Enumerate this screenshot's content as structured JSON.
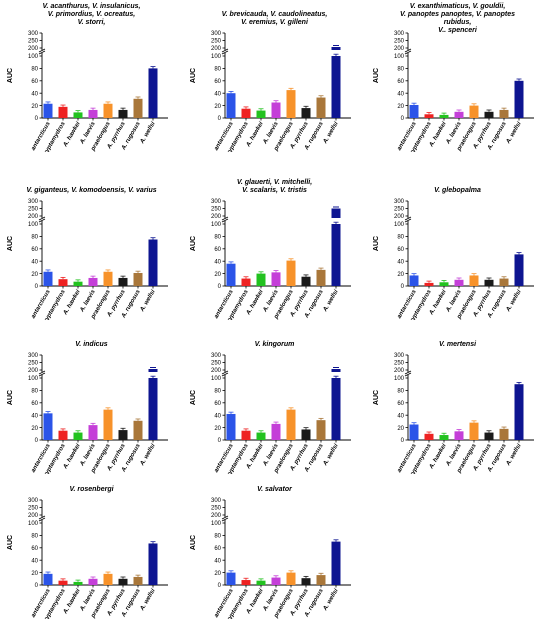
{
  "y_axis_label": "AUC",
  "y_ticks_lower": [
    "0",
    "20",
    "40",
    "60",
    "80",
    "100"
  ],
  "y_ticks_upper": [
    "200",
    "250",
    "300"
  ],
  "species": [
    "A. antarcticus",
    "A. cryptamydros",
    "A. hawkei",
    "A. laevis",
    "A. praelongus",
    "A. pyrrhus",
    "A. rugosus",
    "A. wellsi"
  ],
  "colors": {
    "A. antarcticus": "#2b54e8",
    "A. cryptamydros": "#ee2222",
    "A. hawkei": "#22c21f",
    "A. laevis": "#c43fd8",
    "A. praelongus": "#f7922a",
    "A. pyrrhus": "#1a1a1a",
    "A. rugosus": "#a9773a",
    "A. wellsi": "#0e1591"
  },
  "chart_data": [
    {
      "type": "bar",
      "title_lines": [
        "V. acanthurus, V. insulanicus,",
        "V. primordius, V. ocreatus,",
        "V. storri,"
      ],
      "values": [
        23,
        18,
        9,
        13,
        23,
        13,
        31,
        80
      ]
    },
    {
      "type": "bar",
      "title_lines": [
        "V. brevicauda, V. caudolineatus,",
        "V. eremius, V. gilleni"
      ],
      "values": [
        40,
        15,
        12,
        25,
        45,
        16,
        33,
        130
      ]
    },
    {
      "type": "bar",
      "title_lines": [
        "V. exanthimaticus, V. gouldii,",
        "V. panoptes panoptes, V. panoptes rubidus,",
        "V.. spenceri"
      ],
      "values": [
        21,
        6,
        5,
        10,
        20,
        10,
        13,
        60
      ]
    },
    {
      "type": "bar",
      "title_lines": [
        "V. giganteus, V. komodoensis, V. varius"
      ],
      "values": [
        23,
        11,
        7,
        13,
        23,
        13,
        21,
        75
      ]
    },
    {
      "type": "bar",
      "title_lines": [
        "V. glauerti, V. mitchelli,",
        "V. scalaris, V. tristis"
      ],
      "values": [
        36,
        12,
        20,
        22,
        41,
        15,
        26,
        250
      ]
    },
    {
      "type": "bar",
      "title_lines": [
        "V. glebopalma"
      ],
      "values": [
        17,
        5,
        6,
        10,
        17,
        10,
        12,
        51
      ]
    },
    {
      "type": "bar",
      "title_lines": [
        "V. indicus"
      ],
      "values": [
        43,
        15,
        12,
        24,
        49,
        16,
        31,
        140
      ]
    },
    {
      "type": "bar",
      "title_lines": [
        "V. kingorum"
      ],
      "values": [
        42,
        15,
        12,
        26,
        49,
        17,
        32,
        130
      ]
    },
    {
      "type": "bar",
      "title_lines": [
        "V. mertensi"
      ],
      "values": [
        25,
        10,
        8,
        14,
        28,
        12,
        18,
        90
      ]
    },
    {
      "type": "bar",
      "title_lines": [
        "V. rosenbergi"
      ],
      "values": [
        18,
        7,
        5,
        10,
        18,
        10,
        13,
        67
      ]
    },
    {
      "type": "bar",
      "title_lines": [
        "V. salvator"
      ],
      "values": [
        20,
        8,
        7,
        12,
        20,
        11,
        16,
        70
      ]
    }
  ]
}
